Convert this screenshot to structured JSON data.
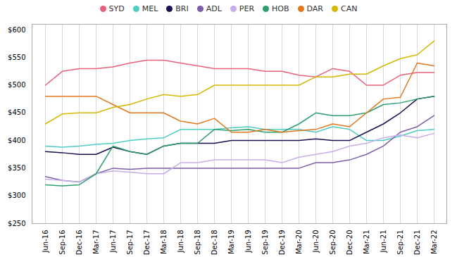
{
  "chart_data": {
    "type": "line",
    "categories": [
      "Jun-16",
      "Sep-16",
      "Dec-16",
      "Mar-17",
      "Jun-17",
      "Sep-17",
      "Dec-17",
      "Mar-18",
      "Jun-18",
      "Sep-18",
      "Dec-18",
      "Mar-19",
      "Jun-19",
      "Sep-19",
      "Dec-19",
      "Mar-20",
      "Jun-20",
      "Sep-20",
      "Dec-20",
      "Mar-21",
      "Jun-21",
      "Sep-21",
      "Dec-21",
      "Mar-22"
    ],
    "series": [
      {
        "name": "SYD",
        "color": "#e8607a",
        "values": [
          500,
          525,
          530,
          530,
          533,
          540,
          545,
          545,
          540,
          535,
          530,
          530,
          530,
          525,
          525,
          518,
          515,
          530,
          525,
          500,
          500,
          518,
          523,
          523
        ]
      },
      {
        "name": "MEL",
        "color": "#4ecdc4",
        "values": [
          390,
          388,
          390,
          393,
          395,
          400,
          403,
          405,
          420,
          420,
          420,
          423,
          425,
          420,
          420,
          420,
          415,
          425,
          420,
          400,
          400,
          408,
          418,
          420
        ]
      },
      {
        "name": "BRI",
        "color": "#1a1050",
        "values": [
          380,
          378,
          375,
          375,
          388,
          380,
          375,
          390,
          395,
          395,
          395,
          400,
          400,
          400,
          400,
          400,
          403,
          400,
          400,
          415,
          430,
          450,
          475,
          480
        ]
      },
      {
        "name": "ADL",
        "color": "#7b5ea7",
        "values": [
          335,
          328,
          325,
          340,
          350,
          348,
          350,
          350,
          350,
          350,
          350,
          350,
          350,
          350,
          350,
          350,
          360,
          360,
          365,
          375,
          390,
          415,
          425,
          445
        ]
      },
      {
        "name": "PER",
        "color": "#c8aee8",
        "values": [
          330,
          328,
          325,
          340,
          345,
          343,
          340,
          340,
          360,
          360,
          365,
          365,
          365,
          365,
          360,
          370,
          375,
          380,
          390,
          395,
          405,
          410,
          405,
          413
        ]
      },
      {
        "name": "HOB",
        "color": "#2d9e6e",
        "values": [
          320,
          318,
          320,
          340,
          390,
          380,
          375,
          390,
          395,
          395,
          420,
          418,
          420,
          415,
          415,
          430,
          450,
          445,
          445,
          450,
          465,
          468,
          475,
          480
        ]
      },
      {
        "name": "DAR",
        "color": "#e07820",
        "values": [
          480,
          480,
          480,
          480,
          465,
          450,
          450,
          450,
          435,
          430,
          440,
          415,
          415,
          420,
          415,
          418,
          420,
          430,
          425,
          450,
          475,
          478,
          540,
          535
        ]
      },
      {
        "name": "CAN",
        "color": "#d4b800",
        "values": [
          430,
          448,
          450,
          450,
          460,
          465,
          475,
          483,
          480,
          483,
          500,
          500,
          500,
          500,
          500,
          500,
          515,
          515,
          520,
          520,
          535,
          548,
          555,
          580
        ]
      }
    ],
    "ylim": [
      250,
      610
    ],
    "yticks": [
      {
        "value": 250,
        "label": "$250"
      },
      {
        "value": 300,
        "label": "$300"
      },
      {
        "value": 350,
        "label": "$350"
      },
      {
        "value": 400,
        "label": "$400"
      },
      {
        "value": 450,
        "label": "$450"
      },
      {
        "value": 500,
        "label": "$500"
      },
      {
        "value": 550,
        "label": "$550"
      },
      {
        "value": 600,
        "label": "$600"
      }
    ],
    "grid": "x",
    "legend": "top"
  }
}
